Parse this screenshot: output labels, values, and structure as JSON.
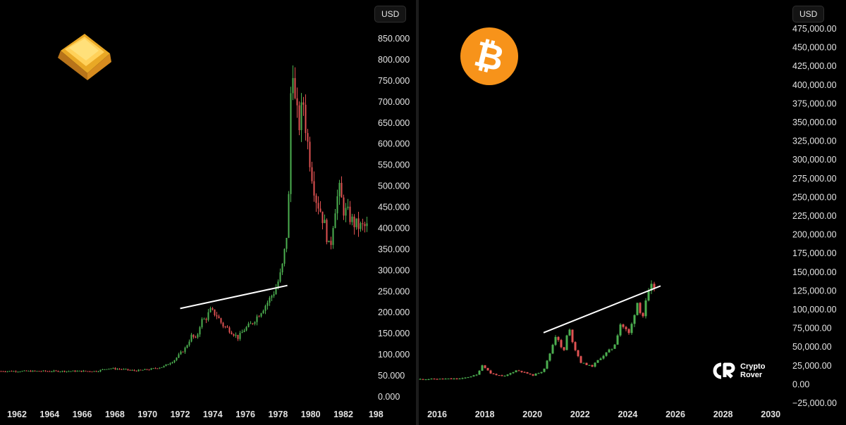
{
  "chart_data": [
    {
      "type": "candlestick",
      "asset_icon": "gold-bar-icon",
      "currency": "USD",
      "yaxis_ticks": [
        "850.000",
        "800.000",
        "750.000",
        "700.000",
        "650.000",
        "600.000",
        "550.000",
        "500.000",
        "450.000",
        "400.000",
        "350.000",
        "300.000",
        "250.000",
        "200.000",
        "150.000",
        "100.000",
        "50.000",
        "0.000"
      ],
      "xaxis_ticks": [
        "1962",
        "1964",
        "1966",
        "1968",
        "1970",
        "1972",
        "1974",
        "1976",
        "1978",
        "1980",
        "1982",
        "198"
      ],
      "xlim": [
        1961.2,
        1984.8
      ],
      "ylim": [
        -50,
        906
      ],
      "price_path": [
        [
          1961.2,
          35
        ],
        [
          1967.5,
          35
        ],
        [
          1968.2,
          42
        ],
        [
          1969.0,
          40
        ],
        [
          1970.0,
          36
        ],
        [
          1971.0,
          40
        ],
        [
          1971.8,
          46
        ],
        [
          1972.5,
          62
        ],
        [
          1973.2,
          90
        ],
        [
          1973.6,
          120
        ],
        [
          1973.9,
          110
        ],
        [
          1974.2,
          155
        ],
        [
          1974.5,
          160
        ],
        [
          1974.8,
          180
        ],
        [
          1975.2,
          170
        ],
        [
          1975.6,
          145
        ],
        [
          1976.0,
          135
        ],
        [
          1976.6,
          115
        ],
        [
          1977.0,
          135
        ],
        [
          1977.5,
          150
        ],
        [
          1978.0,
          175
        ],
        [
          1978.5,
          200
        ],
        [
          1979.0,
          230
        ],
        [
          1979.4,
          275
        ],
        [
          1979.7,
          350
        ],
        [
          1979.9,
          480
        ],
        [
          1980.05,
          850
        ],
        [
          1980.2,
          690
        ],
        [
          1980.5,
          620
        ],
        [
          1980.8,
          680
        ],
        [
          1981.0,
          600
        ],
        [
          1981.3,
          520
        ],
        [
          1981.6,
          450
        ],
        [
          1981.9,
          420
        ],
        [
          1982.2,
          380
        ],
        [
          1982.5,
          320
        ],
        [
          1982.8,
          420
        ],
        [
          1983.1,
          470
        ],
        [
          1983.4,
          420
        ],
        [
          1983.7,
          410
        ],
        [
          1984.0,
          390
        ],
        [
          1984.4,
          380
        ],
        [
          1984.8,
          380
        ]
      ],
      "trendline": [
        [
          1972.8,
          185
        ],
        [
          1979.7,
          240
        ]
      ]
    },
    {
      "type": "candlestick",
      "asset_icon": "bitcoin-icon",
      "currency": "USD",
      "yaxis_ticks": [
        "475,000.00",
        "450,000.00",
        "425,000.00",
        "400,000.00",
        "375,000.00",
        "350,000.00",
        "325,000.00",
        "300,000.00",
        "275,000.00",
        "250,000.00",
        "225,000.00",
        "200,000.00",
        "175,000.00",
        "150,000.00",
        "125,000.00",
        "100,000.00",
        "75,000.00",
        "50,000.00",
        "25,000.00",
        "0.00",
        "−25,000.00"
      ],
      "xaxis_ticks": [
        "2016",
        "2018",
        "2020",
        "2022",
        "2024",
        "2026",
        "2028",
        "2030"
      ],
      "xlim": [
        2015.0,
        2031.6
      ],
      "ylim": [
        -35000,
        478000
      ],
      "price_path": [
        [
          2015.0,
          300
        ],
        [
          2017.0,
          1000
        ],
        [
          2017.7,
          6000
        ],
        [
          2017.95,
          19000
        ],
        [
          2018.3,
          8000
        ],
        [
          2018.9,
          3500
        ],
        [
          2019.5,
          12000
        ],
        [
          2020.0,
          7500
        ],
        [
          2020.2,
          5000
        ],
        [
          2020.7,
          11000
        ],
        [
          2020.95,
          29000
        ],
        [
          2021.3,
          60000
        ],
        [
          2021.6,
          32000
        ],
        [
          2021.85,
          67000
        ],
        [
          2022.1,
          42000
        ],
        [
          2022.4,
          22000
        ],
        [
          2022.9,
          16500
        ],
        [
          2023.3,
          28000
        ],
        [
          2023.9,
          42000
        ],
        [
          2024.2,
          72000
        ],
        [
          2024.6,
          58000
        ],
        [
          2024.95,
          100000
        ],
        [
          2025.2,
          80000
        ],
        [
          2025.4,
          105000
        ],
        [
          2025.6,
          118000
        ]
      ],
      "trendline": [
        [
          2020.65,
          60000
        ],
        [
          2025.95,
          120000
        ]
      ]
    }
  ],
  "brand": {
    "logo_icon": "crypto-rover-logo-icon",
    "line1": "Crypto",
    "line2": "Rover"
  }
}
